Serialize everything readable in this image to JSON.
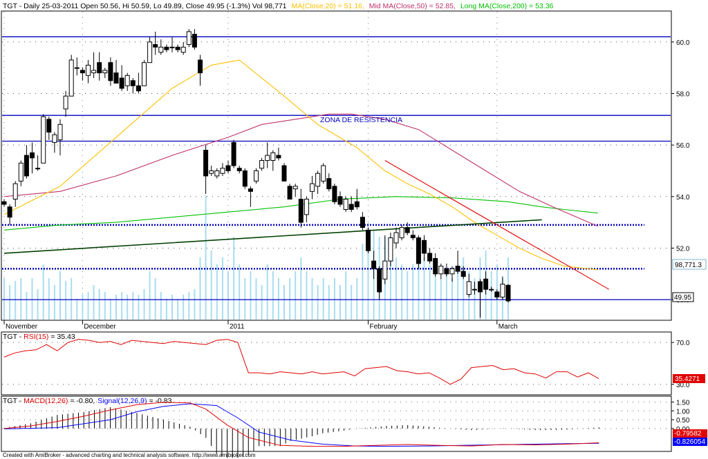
{
  "header": {
    "prefix": "TGT - Daily 25-03-2011 Open 50.56, Hi 50.59, Lo 49.89, Close 49.95 (-1.3%) Vol 98,771",
    "ma20": "MA(Close,20) = 51.16,",
    "ma50": "Mid MA(Close,50) = 52.85,",
    "ma200": "Long MA(Close,200) = 53.36"
  },
  "annotation": "ZONA DE RESISTENCIA",
  "price_axis": {
    "ticks": [
      "60.0",
      "58.0",
      "56.0",
      "54.0",
      "52.0",
      "50.0"
    ],
    "volume_box": "98,771.3",
    "close_box": "49.95"
  },
  "date_axis": {
    "labels": [
      "November",
      "December",
      "2011",
      "February",
      "March"
    ]
  },
  "rsi": {
    "prefix": "TGT - ",
    "label": "RSI(15)",
    "value_text": "= 35.43",
    "ticks": [
      "70.0",
      "30.0"
    ],
    "box": "35.4271"
  },
  "macd": {
    "prefix": "TGT - ",
    "label": "MACD(12,26)",
    "value_text": "= -0.80,",
    "signal_label": "Signal(12,26,9)",
    "signal_value": "= -0.83",
    "ticks": [
      "1.50",
      "1.00",
      "0.50",
      "0.00"
    ],
    "box_macd": "-0.79582",
    "box_signal": "-0.826054"
  },
  "footer": "Created with AmiBroker - advanced charting and technical analysis software. http://www.amibroker.com",
  "colors": {
    "up": "#ffffff",
    "down": "#000000",
    "ma20": "#ffc000",
    "ma50": "#c0306a",
    "ma200": "#00c000",
    "volume": "#a8dcf0",
    "level": "#0000c0",
    "trend_up": "#004000",
    "trend_down": "#e00000",
    "rsi": "#e00000",
    "macd": "#e00000",
    "signal": "#0000ff"
  },
  "chart_data": {
    "type": "candlestick",
    "ylim": [
      49.2,
      61.2
    ],
    "resistance_levels": [
      60.2,
      57.15,
      56.15,
      50.0
    ],
    "dotted_levels": [
      52.9,
      51.2
    ],
    "candles": [
      {
        "o": 53.8,
        "h": 53.9,
        "l": 53.6,
        "c": 53.7
      },
      {
        "o": 53.6,
        "h": 53.7,
        "l": 52.9,
        "c": 53.2
      },
      {
        "o": 53.9,
        "h": 54.6,
        "l": 53.6,
        "c": 54.5
      },
      {
        "o": 54.6,
        "h": 55.4,
        "l": 54.4,
        "c": 55.3
      },
      {
        "o": 55.6,
        "h": 56.0,
        "l": 54.7,
        "c": 54.8
      },
      {
        "o": 55.7,
        "h": 56.1,
        "l": 54.9,
        "c": 55.5
      },
      {
        "o": 55.1,
        "h": 55.6,
        "l": 55.0,
        "c": 55.1
      },
      {
        "o": 55.3,
        "h": 57.2,
        "l": 55.3,
        "c": 57.1
      },
      {
        "o": 57.0,
        "h": 57.1,
        "l": 56.2,
        "c": 56.5
      },
      {
        "o": 56.1,
        "h": 56.5,
        "l": 55.7,
        "c": 56.4
      },
      {
        "o": 56.2,
        "h": 57.0,
        "l": 55.6,
        "c": 56.8
      },
      {
        "o": 57.4,
        "h": 58.1,
        "l": 57.1,
        "c": 57.9
      },
      {
        "o": 57.9,
        "h": 59.5,
        "l": 57.9,
        "c": 59.3
      },
      {
        "o": 59.0,
        "h": 59.4,
        "l": 58.7,
        "c": 59.0
      },
      {
        "o": 58.9,
        "h": 59.0,
        "l": 58.5,
        "c": 58.8
      },
      {
        "o": 58.7,
        "h": 59.3,
        "l": 58.4,
        "c": 59.1
      },
      {
        "o": 58.8,
        "h": 59.6,
        "l": 58.6,
        "c": 58.9
      },
      {
        "o": 59.2,
        "h": 59.6,
        "l": 58.5,
        "c": 58.8
      },
      {
        "o": 58.8,
        "h": 59.0,
        "l": 58.6,
        "c": 58.9
      },
      {
        "o": 59.2,
        "h": 59.4,
        "l": 58.3,
        "c": 58.5
      },
      {
        "o": 58.8,
        "h": 59.3,
        "l": 58.4,
        "c": 58.4
      },
      {
        "o": 58.6,
        "h": 59.1,
        "l": 58.1,
        "c": 58.2
      },
      {
        "o": 58.3,
        "h": 58.8,
        "l": 58.1,
        "c": 58.7
      },
      {
        "o": 58.5,
        "h": 58.6,
        "l": 58.0,
        "c": 58.3
      },
      {
        "o": 58.3,
        "h": 58.8,
        "l": 58.0,
        "c": 58.1
      },
      {
        "o": 58.3,
        "h": 59.3,
        "l": 58.3,
        "c": 59.2
      },
      {
        "o": 59.2,
        "h": 60.2,
        "l": 59.2,
        "c": 60.0
      },
      {
        "o": 59.9,
        "h": 60.4,
        "l": 59.5,
        "c": 59.8
      },
      {
        "o": 59.6,
        "h": 60.1,
        "l": 59.5,
        "c": 59.8
      },
      {
        "o": 59.8,
        "h": 59.9,
        "l": 59.6,
        "c": 59.7
      },
      {
        "o": 59.8,
        "h": 60.2,
        "l": 59.6,
        "c": 59.8
      },
      {
        "o": 59.8,
        "h": 59.9,
        "l": 59.6,
        "c": 59.7
      },
      {
        "o": 59.6,
        "h": 60.0,
        "l": 59.5,
        "c": 59.8
      },
      {
        "o": 59.9,
        "h": 60.5,
        "l": 59.8,
        "c": 60.4
      },
      {
        "o": 60.3,
        "h": 60.5,
        "l": 59.7,
        "c": 59.8
      },
      {
        "o": 59.3,
        "h": 59.5,
        "l": 58.3,
        "c": 58.8
      },
      {
        "o": 55.8,
        "h": 56.0,
        "l": 54.1,
        "c": 54.8
      },
      {
        "o": 54.9,
        "h": 55.2,
        "l": 54.8,
        "c": 55.0
      },
      {
        "o": 54.8,
        "h": 55.1,
        "l": 54.7,
        "c": 55.0
      },
      {
        "o": 54.9,
        "h": 55.3,
        "l": 54.8,
        "c": 55.1
      },
      {
        "o": 55.2,
        "h": 55.4,
        "l": 54.9,
        "c": 55.0
      },
      {
        "o": 56.1,
        "h": 56.2,
        "l": 55.1,
        "c": 55.2
      },
      {
        "o": 55.1,
        "h": 55.2,
        "l": 54.9,
        "c": 55.0
      },
      {
        "o": 55.0,
        "h": 55.1,
        "l": 54.3,
        "c": 54.4
      },
      {
        "o": 54.3,
        "h": 54.4,
        "l": 53.6,
        "c": 54.2
      },
      {
        "o": 54.6,
        "h": 55.1,
        "l": 54.5,
        "c": 55.0
      },
      {
        "o": 55.1,
        "h": 55.5,
        "l": 55.0,
        "c": 55.4
      },
      {
        "o": 55.4,
        "h": 56.1,
        "l": 55.1,
        "c": 55.6
      },
      {
        "o": 55.4,
        "h": 55.8,
        "l": 55.0,
        "c": 55.7
      },
      {
        "o": 55.6,
        "h": 55.9,
        "l": 55.4,
        "c": 55.5
      },
      {
        "o": 55.2,
        "h": 55.3,
        "l": 54.6,
        "c": 54.6
      },
      {
        "o": 54.4,
        "h": 54.5,
        "l": 53.9,
        "c": 53.9
      },
      {
        "o": 54.3,
        "h": 54.5,
        "l": 54.0,
        "c": 54.4
      },
      {
        "o": 53.9,
        "h": 54.3,
        "l": 52.8,
        "c": 53.0
      },
      {
        "o": 53.3,
        "h": 54.0,
        "l": 53.0,
        "c": 53.9
      },
      {
        "o": 54.2,
        "h": 54.8,
        "l": 53.9,
        "c": 54.5
      },
      {
        "o": 54.4,
        "h": 55.0,
        "l": 54.1,
        "c": 54.9
      },
      {
        "o": 54.6,
        "h": 55.3,
        "l": 54.5,
        "c": 55.2
      },
      {
        "o": 54.7,
        "h": 54.9,
        "l": 54.2,
        "c": 54.3
      },
      {
        "o": 54.4,
        "h": 54.5,
        "l": 53.7,
        "c": 53.8
      },
      {
        "o": 54.0,
        "h": 54.2,
        "l": 53.6,
        "c": 53.7
      },
      {
        "o": 53.5,
        "h": 54.0,
        "l": 53.4,
        "c": 53.9
      },
      {
        "o": 53.7,
        "h": 54.0,
        "l": 53.4,
        "c": 53.5
      },
      {
        "o": 53.8,
        "h": 54.3,
        "l": 53.5,
        "c": 53.6
      },
      {
        "o": 53.2,
        "h": 53.4,
        "l": 52.7,
        "c": 52.8
      },
      {
        "o": 52.7,
        "h": 52.8,
        "l": 51.8,
        "c": 51.9
      },
      {
        "o": 51.5,
        "h": 51.9,
        "l": 50.8,
        "c": 51.2
      },
      {
        "o": 51.2,
        "h": 51.3,
        "l": 50.0,
        "c": 50.3
      },
      {
        "o": 50.8,
        "h": 52.5,
        "l": 50.6,
        "c": 51.5
      },
      {
        "o": 51.5,
        "h": 52.6,
        "l": 51.3,
        "c": 52.4
      },
      {
        "o": 52.2,
        "h": 52.8,
        "l": 52.0,
        "c": 52.6
      },
      {
        "o": 52.4,
        "h": 52.9,
        "l": 52.3,
        "c": 52.8
      },
      {
        "o": 52.8,
        "h": 53.0,
        "l": 52.5,
        "c": 52.6
      },
      {
        "o": 52.5,
        "h": 52.7,
        "l": 52.3,
        "c": 52.4
      },
      {
        "o": 52.4,
        "h": 52.5,
        "l": 51.2,
        "c": 51.4
      },
      {
        "o": 52.3,
        "h": 52.5,
        "l": 51.5,
        "c": 51.8
      },
      {
        "o": 51.8,
        "h": 52.0,
        "l": 51.4,
        "c": 51.5
      },
      {
        "o": 51.6,
        "h": 51.8,
        "l": 50.9,
        "c": 51.0
      },
      {
        "o": 51.0,
        "h": 51.4,
        "l": 50.8,
        "c": 51.3
      },
      {
        "o": 51.2,
        "h": 51.4,
        "l": 50.9,
        "c": 51.0
      },
      {
        "o": 51.0,
        "h": 51.3,
        "l": 50.7,
        "c": 51.2
      },
      {
        "o": 51.3,
        "h": 51.9,
        "l": 51.0,
        "c": 51.1
      },
      {
        "o": 51.1,
        "h": 51.3,
        "l": 50.8,
        "c": 50.9
      },
      {
        "o": 50.2,
        "h": 51.0,
        "l": 50.1,
        "c": 50.7
      },
      {
        "o": 50.4,
        "h": 50.7,
        "l": 50.2,
        "c": 50.4
      },
      {
        "o": 50.7,
        "h": 50.8,
        "l": 49.3,
        "c": 50.3
      },
      {
        "o": 50.8,
        "h": 51.1,
        "l": 50.2,
        "c": 50.4
      },
      {
        "o": 50.4,
        "h": 50.5,
        "l": 50.3,
        "c": 50.4
      },
      {
        "o": 50.3,
        "h": 50.4,
        "l": 50.0,
        "c": 50.1
      },
      {
        "o": 50.1,
        "h": 50.9,
        "l": 50.0,
        "c": 50.6
      },
      {
        "o": 50.56,
        "h": 50.59,
        "l": 49.89,
        "c": 49.95
      }
    ],
    "volume_rel": [
      0.3,
      0.25,
      0.28,
      0.3,
      0.2,
      0.3,
      0.22,
      0.4,
      0.3,
      0.25,
      0.35,
      0.28,
      0.3,
      0.15,
      0.18,
      0.2,
      0.25,
      0.22,
      0.2,
      0.15,
      0.18,
      0.2,
      0.18,
      0.2,
      0.18,
      0.22,
      0.35,
      0.3,
      0.2,
      0.15,
      0.18,
      0.15,
      0.18,
      0.2,
      0.22,
      0.45,
      0.9,
      0.5,
      0.4,
      0.45,
      0.35,
      0.6,
      0.4,
      0.3,
      0.35,
      0.3,
      0.25,
      0.4,
      0.35,
      0.3,
      0.25,
      0.3,
      0.35,
      0.45,
      0.35,
      0.3,
      0.25,
      0.3,
      0.25,
      0.3,
      0.25,
      0.35,
      0.25,
      0.3,
      0.55,
      0.7,
      0.65,
      0.6,
      0.6,
      0.55,
      0.45,
      0.4,
      0.35,
      0.4,
      0.5,
      0.45,
      0.4,
      0.35,
      0.3,
      0.35,
      0.3,
      0.4,
      0.45,
      0.35,
      0.3,
      0.45,
      0.5,
      0.35,
      0.4,
      0.3,
      0.45
    ],
    "date_axis_index": {
      "November": 0,
      "December": 14,
      "2011": 40,
      "February": 65,
      "March": 88
    },
    "ma20": [
      [
        0,
        53.3
      ],
      [
        10,
        54.4
      ],
      [
        20,
        56.3
      ],
      [
        30,
        58.2
      ],
      [
        37,
        59.1
      ],
      [
        42,
        59.3
      ],
      [
        50,
        57.9
      ],
      [
        56,
        56.8
      ],
      [
        63,
        55.9
      ],
      [
        68,
        55.0
      ],
      [
        72,
        54.5
      ],
      [
        76,
        54.1
      ],
      [
        80,
        53.6
      ],
      [
        84,
        53.0
      ],
      [
        88,
        52.5
      ],
      [
        92,
        52.0
      ],
      [
        96,
        51.6
      ],
      [
        100,
        51.3
      ],
      [
        106,
        51.16
      ]
    ],
    "ma50": [
      [
        0,
        54.0
      ],
      [
        10,
        54.2
      ],
      [
        20,
        54.8
      ],
      [
        30,
        55.6
      ],
      [
        40,
        56.3
      ],
      [
        46,
        56.8
      ],
      [
        52,
        57.0
      ],
      [
        58,
        57.2
      ],
      [
        62,
        57.2
      ],
      [
        68,
        57.0
      ],
      [
        74,
        56.6
      ],
      [
        80,
        55.8
      ],
      [
        86,
        55.0
      ],
      [
        92,
        54.2
      ],
      [
        98,
        53.6
      ],
      [
        106,
        52.85
      ]
    ],
    "ma200": [
      [
        0,
        52.7
      ],
      [
        10,
        52.9
      ],
      [
        20,
        53.0
      ],
      [
        30,
        53.2
      ],
      [
        40,
        53.4
      ],
      [
        50,
        53.6
      ],
      [
        60,
        53.9
      ],
      [
        70,
        54.0
      ],
      [
        80,
        53.95
      ],
      [
        90,
        53.8
      ],
      [
        96,
        53.6
      ],
      [
        100,
        53.5
      ],
      [
        106,
        53.36
      ]
    ],
    "trend_support": [
      [
        0,
        51.8
      ],
      [
        96,
        53.1
      ]
    ],
    "trend_resistance": [
      [
        68,
        55.4
      ],
      [
        108,
        50.4
      ]
    ],
    "rsi_ylim": [
      20,
      80
    ],
    "rsi_levels": [
      70,
      30
    ],
    "rsi": [
      [
        0,
        56
      ],
      [
        2,
        60
      ],
      [
        4,
        62
      ],
      [
        6,
        63
      ],
      [
        8,
        68
      ],
      [
        10,
        62
      ],
      [
        12,
        70
      ],
      [
        14,
        73
      ],
      [
        16,
        72
      ],
      [
        18,
        70
      ],
      [
        20,
        71
      ],
      [
        22,
        68
      ],
      [
        24,
        72
      ],
      [
        26,
        71
      ],
      [
        28,
        70
      ],
      [
        30,
        69
      ],
      [
        32,
        71
      ],
      [
        34,
        70
      ],
      [
        36,
        69
      ],
      [
        38,
        68
      ],
      [
        40,
        72
      ],
      [
        42,
        73
      ],
      [
        44,
        70
      ],
      [
        46,
        41
      ],
      [
        48,
        41
      ],
      [
        50,
        40
      ],
      [
        52,
        42
      ],
      [
        54,
        41
      ],
      [
        56,
        40
      ],
      [
        58,
        42
      ],
      [
        60,
        40
      ],
      [
        62,
        41
      ],
      [
        64,
        42
      ],
      [
        66,
        38
      ],
      [
        68,
        45
      ],
      [
        70,
        46
      ],
      [
        72,
        47
      ],
      [
        74,
        43
      ],
      [
        76,
        42
      ],
      [
        78,
        40
      ],
      [
        80,
        41
      ],
      [
        82,
        36
      ],
      [
        84,
        30
      ],
      [
        86,
        35
      ],
      [
        88,
        46
      ],
      [
        90,
        47
      ],
      [
        92,
        48
      ],
      [
        94,
        44
      ],
      [
        96,
        45
      ],
      [
        98,
        41
      ],
      [
        100,
        40
      ],
      [
        102,
        36
      ],
      [
        104,
        42
      ],
      [
        106,
        42
      ],
      [
        108,
        37
      ],
      [
        110,
        41
      ],
      [
        112,
        35.43
      ]
    ],
    "macd_ylim": [
      -1.25,
      1.75
    ],
    "macd": [
      [
        0,
        0.0
      ],
      [
        5,
        0.15
      ],
      [
        10,
        0.4
      ],
      [
        15,
        0.7
      ],
      [
        20,
        1.05
      ],
      [
        25,
        1.35
      ],
      [
        30,
        1.48
      ],
      [
        35,
        1.45
      ],
      [
        38,
        1.1
      ],
      [
        42,
        0.2
      ],
      [
        46,
        -0.5
      ],
      [
        52,
        -0.95
      ],
      [
        58,
        -1.0
      ],
      [
        64,
        -1.0
      ],
      [
        70,
        -0.95
      ],
      [
        76,
        -0.9
      ],
      [
        82,
        -0.95
      ],
      [
        88,
        -0.98
      ],
      [
        94,
        -0.9
      ],
      [
        100,
        -0.92
      ],
      [
        106,
        -0.88
      ],
      [
        112,
        -0.8
      ]
    ],
    "signal": [
      [
        0,
        -0.02
      ],
      [
        10,
        0.05
      ],
      [
        20,
        0.5
      ],
      [
        25,
        0.95
      ],
      [
        30,
        1.25
      ],
      [
        35,
        1.4
      ],
      [
        40,
        1.3
      ],
      [
        44,
        0.6
      ],
      [
        48,
        -0.2
      ],
      [
        54,
        -0.65
      ],
      [
        60,
        -0.88
      ],
      [
        66,
        -0.98
      ],
      [
        72,
        -1.0
      ],
      [
        80,
        -0.98
      ],
      [
        88,
        -0.94
      ],
      [
        96,
        -0.9
      ],
      [
        104,
        -0.86
      ],
      [
        112,
        -0.83
      ]
    ]
  }
}
